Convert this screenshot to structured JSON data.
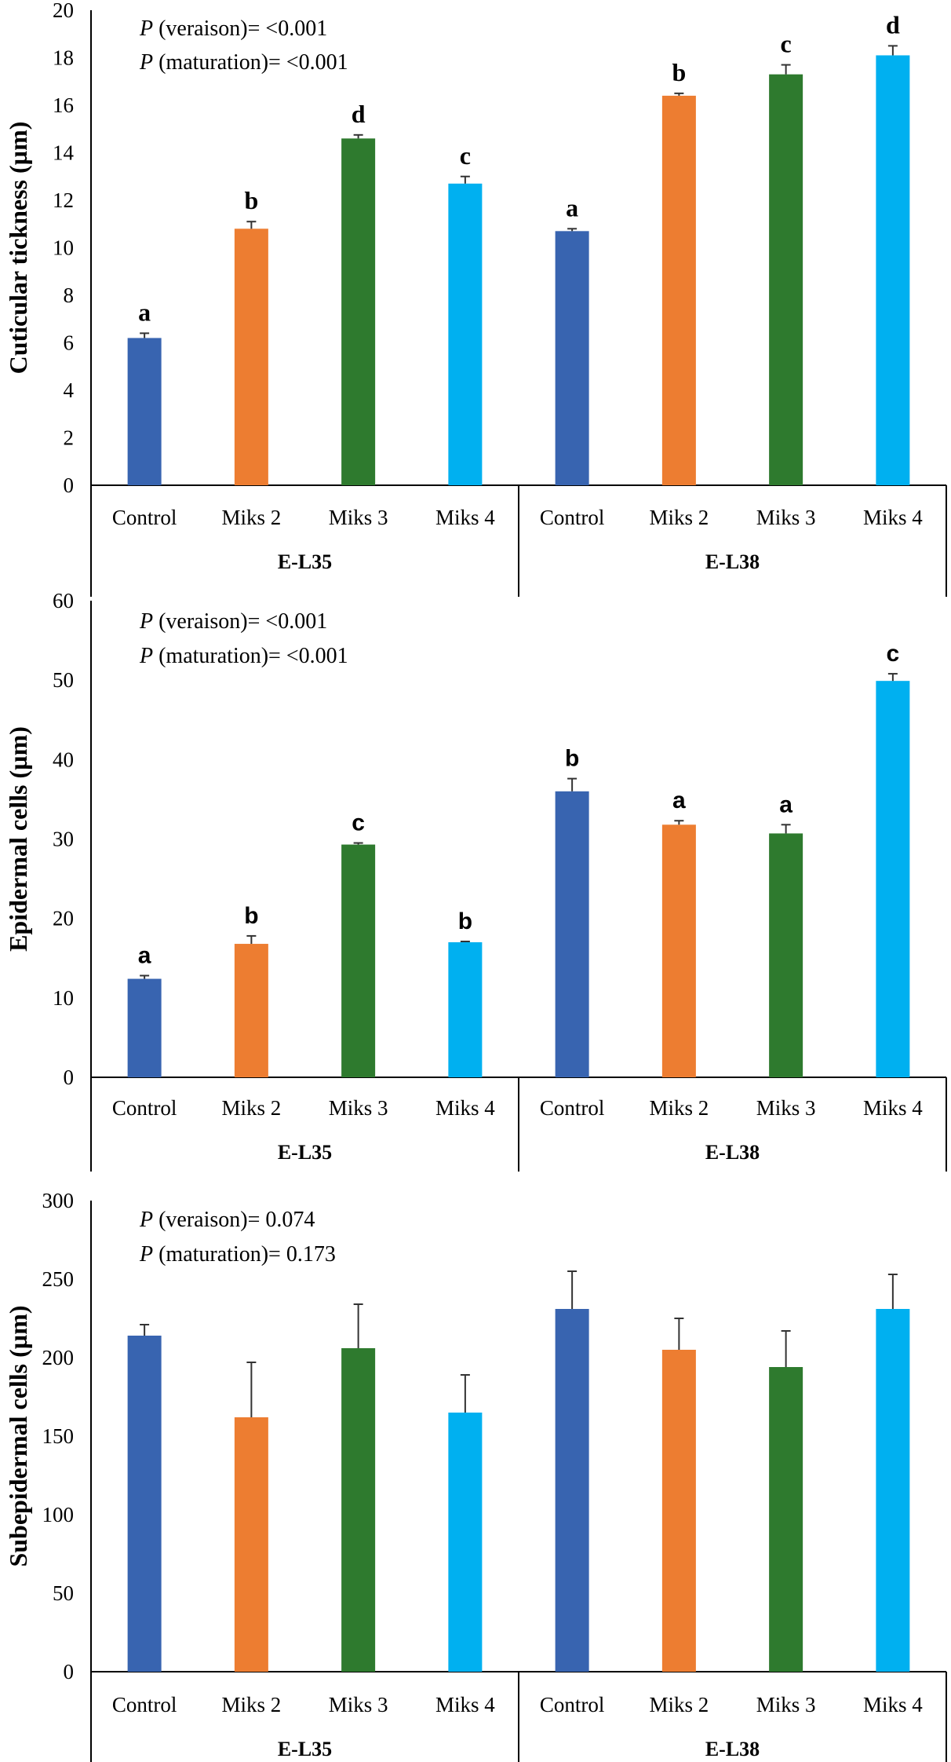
{
  "colors": {
    "Control": "#3864b0",
    "Miks 2": "#ed7d31",
    "Miks 3": "#2e7a2e",
    "Miks 4": "#00b0f0",
    "error_bar": "#333333",
    "axis": "#000000"
  },
  "chart_data": [
    {
      "type": "bar",
      "ylabel": "Cuticular tickness (µm)",
      "ylim": [
        0,
        20
      ],
      "yticks": [
        0,
        2,
        4,
        6,
        8,
        10,
        12,
        14,
        16,
        18,
        20
      ],
      "groups": [
        "E-L35",
        "E-L38"
      ],
      "categories": [
        "Control",
        "Miks 2",
        "Miks 3",
        "Miks 4"
      ],
      "annotations": [
        {
          "italic": "P",
          "text": " (veraison)= <0.001"
        },
        {
          "italic": "P",
          "text": " (maturation)= <0.001"
        }
      ],
      "letter_style": "serif",
      "series": [
        {
          "group": "E-L35",
          "values": [
            6.2,
            10.8,
            14.6,
            12.7
          ],
          "errors": [
            0.2,
            0.3,
            0.15,
            0.3
          ],
          "letters": [
            "a",
            "b",
            "d",
            "c"
          ]
        },
        {
          "group": "E-L38",
          "values": [
            10.7,
            16.4,
            17.3,
            18.1
          ],
          "errors": [
            0.1,
            0.1,
            0.4,
            0.4
          ],
          "letters": [
            "a",
            "b",
            "c",
            "d"
          ]
        }
      ]
    },
    {
      "type": "bar",
      "ylabel": "Epidermal cells (µm)",
      "ylim": [
        0,
        60
      ],
      "yticks": [
        0,
        10,
        20,
        30,
        40,
        50,
        60
      ],
      "groups": [
        "E-L35",
        "E-L38"
      ],
      "categories": [
        "Control",
        "Miks 2",
        "Miks 3",
        "Miks 4"
      ],
      "annotations": [
        {
          "italic": "P",
          "text": " (veraison)= <0.001"
        },
        {
          "italic": "P",
          "text": " (maturation)= <0.001"
        }
      ],
      "letter_style": "sans",
      "series": [
        {
          "group": "E-L35",
          "values": [
            12.4,
            16.8,
            29.3,
            17.0
          ],
          "errors": [
            0.4,
            1.0,
            0.2,
            0.1
          ],
          "letters": [
            "a",
            "b",
            "c",
            "b"
          ]
        },
        {
          "group": "E-L38",
          "values": [
            36.0,
            31.8,
            30.7,
            49.9
          ],
          "errors": [
            1.6,
            0.5,
            1.1,
            0.9
          ],
          "letters": [
            "b",
            "a",
            "a",
            "c"
          ]
        }
      ]
    },
    {
      "type": "bar",
      "ylabel": "Subepidermal cells (µm)",
      "ylim": [
        0,
        300
      ],
      "yticks": [
        0,
        50,
        100,
        150,
        200,
        250,
        300
      ],
      "groups": [
        "E-L35",
        "E-L38"
      ],
      "categories": [
        "Control",
        "Miks 2",
        "Miks 3",
        "Miks 4"
      ],
      "annotations": [
        {
          "italic": "P",
          "text": " (veraison)= 0.074"
        },
        {
          "italic": "P",
          "text": " (maturation)= 0.173"
        }
      ],
      "letter_style": "none",
      "series": [
        {
          "group": "E-L35",
          "values": [
            214,
            162,
            206,
            165
          ],
          "errors": [
            7,
            35,
            28,
            24
          ],
          "letters": []
        },
        {
          "group": "E-L38",
          "values": [
            231,
            205,
            194,
            231
          ],
          "errors": [
            24,
            20,
            23,
            22
          ],
          "letters": []
        }
      ]
    }
  ]
}
